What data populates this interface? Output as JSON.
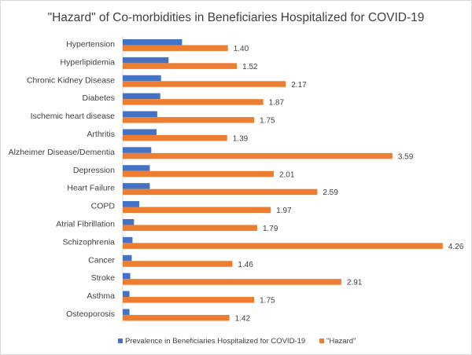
{
  "chart_data": {
    "type": "bar",
    "orientation": "horizontal",
    "title": "\"Hazard\" of Co-morbidities in Beneficiaries Hospitalized for COVID-19",
    "xlabel": "",
    "ylabel": "",
    "grid": false,
    "legend_position": "bottom",
    "categories": [
      "Hypertension",
      "Hyperlipidemia",
      "Chronic Kidney Disease",
      "Diabetes",
      "Ischemic heart disease",
      "Arthritis",
      "Alzheimer Disease/Dementia",
      "Depression",
      "Heart Failure",
      "COPD",
      "Atrial Fibrillation",
      "Schizophrenia",
      "Cancer",
      "Stroke",
      "Asthma",
      "Osteoporosis"
    ],
    "series": [
      {
        "name": "Prevalence in Beneficiaries Hospitalized for COVID-19",
        "color": "#4472C4",
        "values": [
          0.79,
          0.61,
          0.51,
          0.5,
          0.46,
          0.45,
          0.38,
          0.36,
          0.36,
          0.22,
          0.15,
          0.13,
          0.12,
          0.1,
          0.09,
          0.09
        ],
        "data_labels": false
      },
      {
        "name": "\"Hazard\"",
        "color": "#ED7D31",
        "values": [
          1.4,
          1.52,
          2.17,
          1.87,
          1.75,
          1.39,
          3.59,
          2.01,
          2.59,
          1.97,
          1.79,
          4.26,
          1.46,
          2.91,
          1.75,
          1.42
        ],
        "data_labels": true,
        "label_format": "0.00"
      }
    ],
    "xlim": [
      0,
      4.5
    ]
  }
}
